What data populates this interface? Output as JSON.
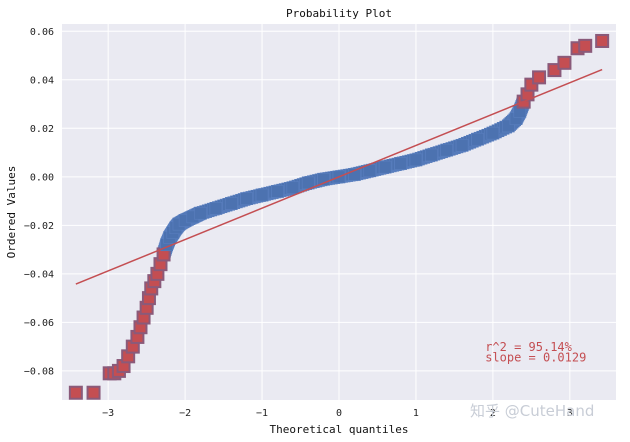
{
  "watermark": "知乎 @CuteHand",
  "chart_data": {
    "type": "scatter",
    "title": "Probability Plot",
    "xlabel": "Theoretical quantiles",
    "ylabel": "Ordered Values",
    "xlim": [
      -3.6,
      3.6
    ],
    "ylim": [
      -0.092,
      0.063
    ],
    "xticks": [
      -3,
      -2,
      -1,
      0,
      1,
      2,
      3
    ],
    "yticks": [
      -0.08,
      -0.06,
      -0.04,
      -0.02,
      0.0,
      0.02,
      0.04,
      0.06
    ],
    "ytick_labels": [
      "−0.08",
      "−0.06",
      "−0.04",
      "−0.02",
      "0.00",
      "0.02",
      "0.04",
      "0.06"
    ],
    "xtick_labels": [
      "−3",
      "−2",
      "−1",
      "0",
      "1",
      "2",
      "3"
    ],
    "grid": true,
    "background_color": "#eaeaf2",
    "series": [
      {
        "kind": "points",
        "color": "#4c72b0",
        "outlier_color": "#c44e52",
        "x": [
          -3.42,
          -3.19,
          -2.98,
          -2.92,
          -2.86,
          -2.8,
          -2.74,
          -2.68,
          -2.62,
          -2.58,
          -2.54,
          -2.5,
          -2.47,
          -2.44,
          -2.4,
          -2.36,
          -2.32,
          -2.28,
          -2.24,
          -2.2,
          -2.16,
          -2.12,
          -2.08,
          -2.0,
          -1.9,
          -1.8,
          -1.6,
          -1.4,
          -1.2,
          -1.0,
          -0.8,
          -0.6,
          -0.4,
          -0.2,
          0.0,
          0.2,
          0.4,
          0.6,
          0.8,
          1.0,
          1.2,
          1.4,
          1.6,
          1.8,
          2.0,
          2.2,
          2.3,
          2.35,
          2.4,
          2.45,
          2.5,
          2.6,
          2.8,
          2.93,
          3.1,
          3.2,
          3.42
        ],
        "y": [
          -0.089,
          -0.089,
          -0.081,
          -0.081,
          -0.08,
          -0.078,
          -0.074,
          -0.07,
          -0.066,
          -0.062,
          -0.058,
          -0.054,
          -0.05,
          -0.046,
          -0.043,
          -0.04,
          -0.036,
          -0.032,
          -0.028,
          -0.025,
          -0.023,
          -0.021,
          -0.0195,
          -0.018,
          -0.0165,
          -0.015,
          -0.013,
          -0.011,
          -0.009,
          -0.0075,
          -0.006,
          -0.0045,
          -0.0025,
          -0.001,
          0.0,
          0.001,
          0.0025,
          0.004,
          0.0055,
          0.007,
          0.009,
          0.011,
          0.013,
          0.0155,
          0.018,
          0.021,
          0.024,
          0.027,
          0.031,
          0.034,
          0.038,
          0.041,
          0.044,
          0.047,
          0.053,
          0.054,
          0.056
        ],
        "outlier_indices": [
          0,
          1,
          2,
          3,
          4,
          5,
          6,
          7,
          8,
          9,
          10,
          11,
          12,
          13,
          14,
          15,
          16,
          17,
          48,
          49,
          50,
          51,
          52,
          53,
          54,
          55,
          56
        ]
      },
      {
        "kind": "fit-line",
        "color": "#c44e52",
        "x": [
          -3.42,
          3.42
        ],
        "y": [
          -0.0442,
          0.0442
        ]
      }
    ],
    "annotations": [
      {
        "text": "r^2 = 95.14%",
        "x": 1.9,
        "y": -0.0718,
        "color": "#c44e52"
      },
      {
        "text": "slope = 0.0129",
        "x": 1.9,
        "y": -0.0762,
        "color": "#c44e52"
      }
    ]
  }
}
